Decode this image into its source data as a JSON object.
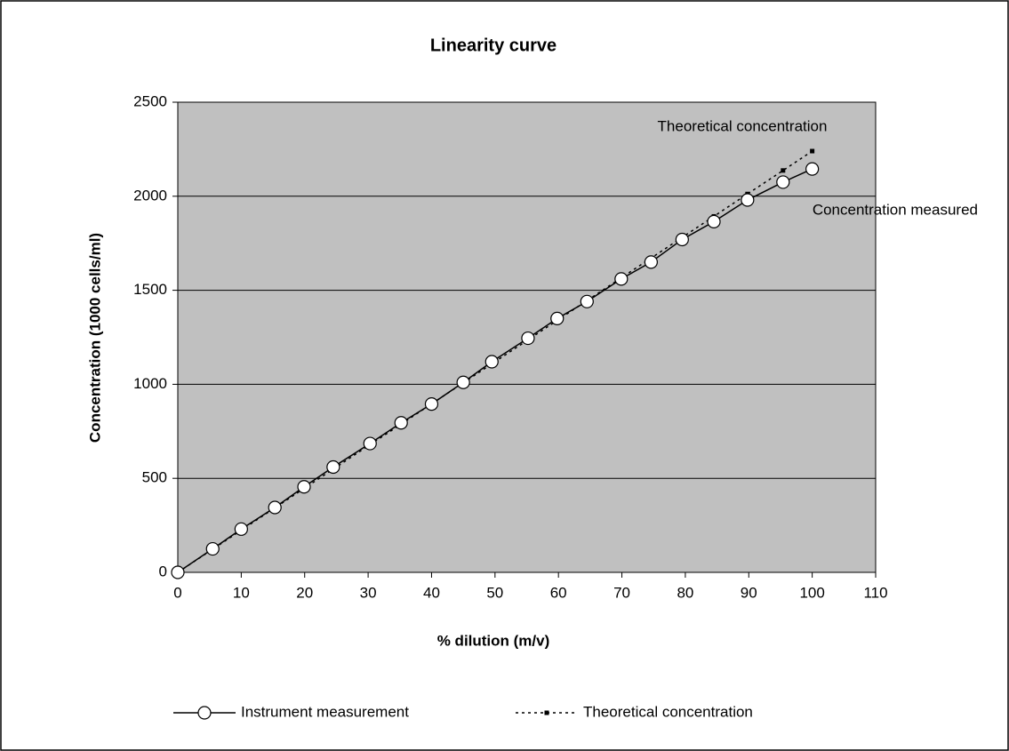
{
  "chart_data": {
    "type": "line",
    "title": "Linearity curve",
    "x_label": "% dilution (m/v)",
    "y_label": "Concentration (1000 cells/ml)",
    "x": [
      0,
      5.5,
      10,
      15.3,
      19.9,
      24.5,
      30.3,
      35.2,
      40,
      45,
      49.5,
      55.2,
      59.8,
      64.5,
      69.9,
      74.6,
      79.5,
      84.5,
      89.8,
      95.4,
      100
    ],
    "series": [
      {
        "name": "Instrument measurement",
        "color": "#000000",
        "line_style": "solid",
        "marker": "circle",
        "values": [
          0,
          125,
          230,
          345,
          455,
          560,
          685,
          795,
          895,
          1010,
          1120,
          1245,
          1350,
          1440,
          1560,
          1650,
          1770,
          1865,
          1980,
          2075,
          2145
        ]
      },
      {
        "name": "Theoretical concentration",
        "color": "#000000",
        "line_style": "dotted",
        "marker": "square",
        "values": [
          0,
          123,
          224,
          343,
          446,
          549,
          679,
          788,
          896,
          1008,
          1109,
          1236,
          1340,
          1445,
          1566,
          1671,
          1781,
          1893,
          2012,
          2137,
          2240
        ]
      }
    ],
    "annotations": [
      "Theoretical concentration",
      "Concentration measured"
    ],
    "xlim": [
      0,
      110
    ],
    "xticks": [
      0,
      10,
      20,
      30,
      40,
      50,
      60,
      70,
      80,
      90,
      100,
      110
    ],
    "ylim": [
      0,
      2500
    ],
    "yticks": [
      0,
      500,
      1000,
      1500,
      2000,
      2500
    ],
    "grid": true,
    "plot_background": "#c0c0c0",
    "legend": "bottom"
  }
}
